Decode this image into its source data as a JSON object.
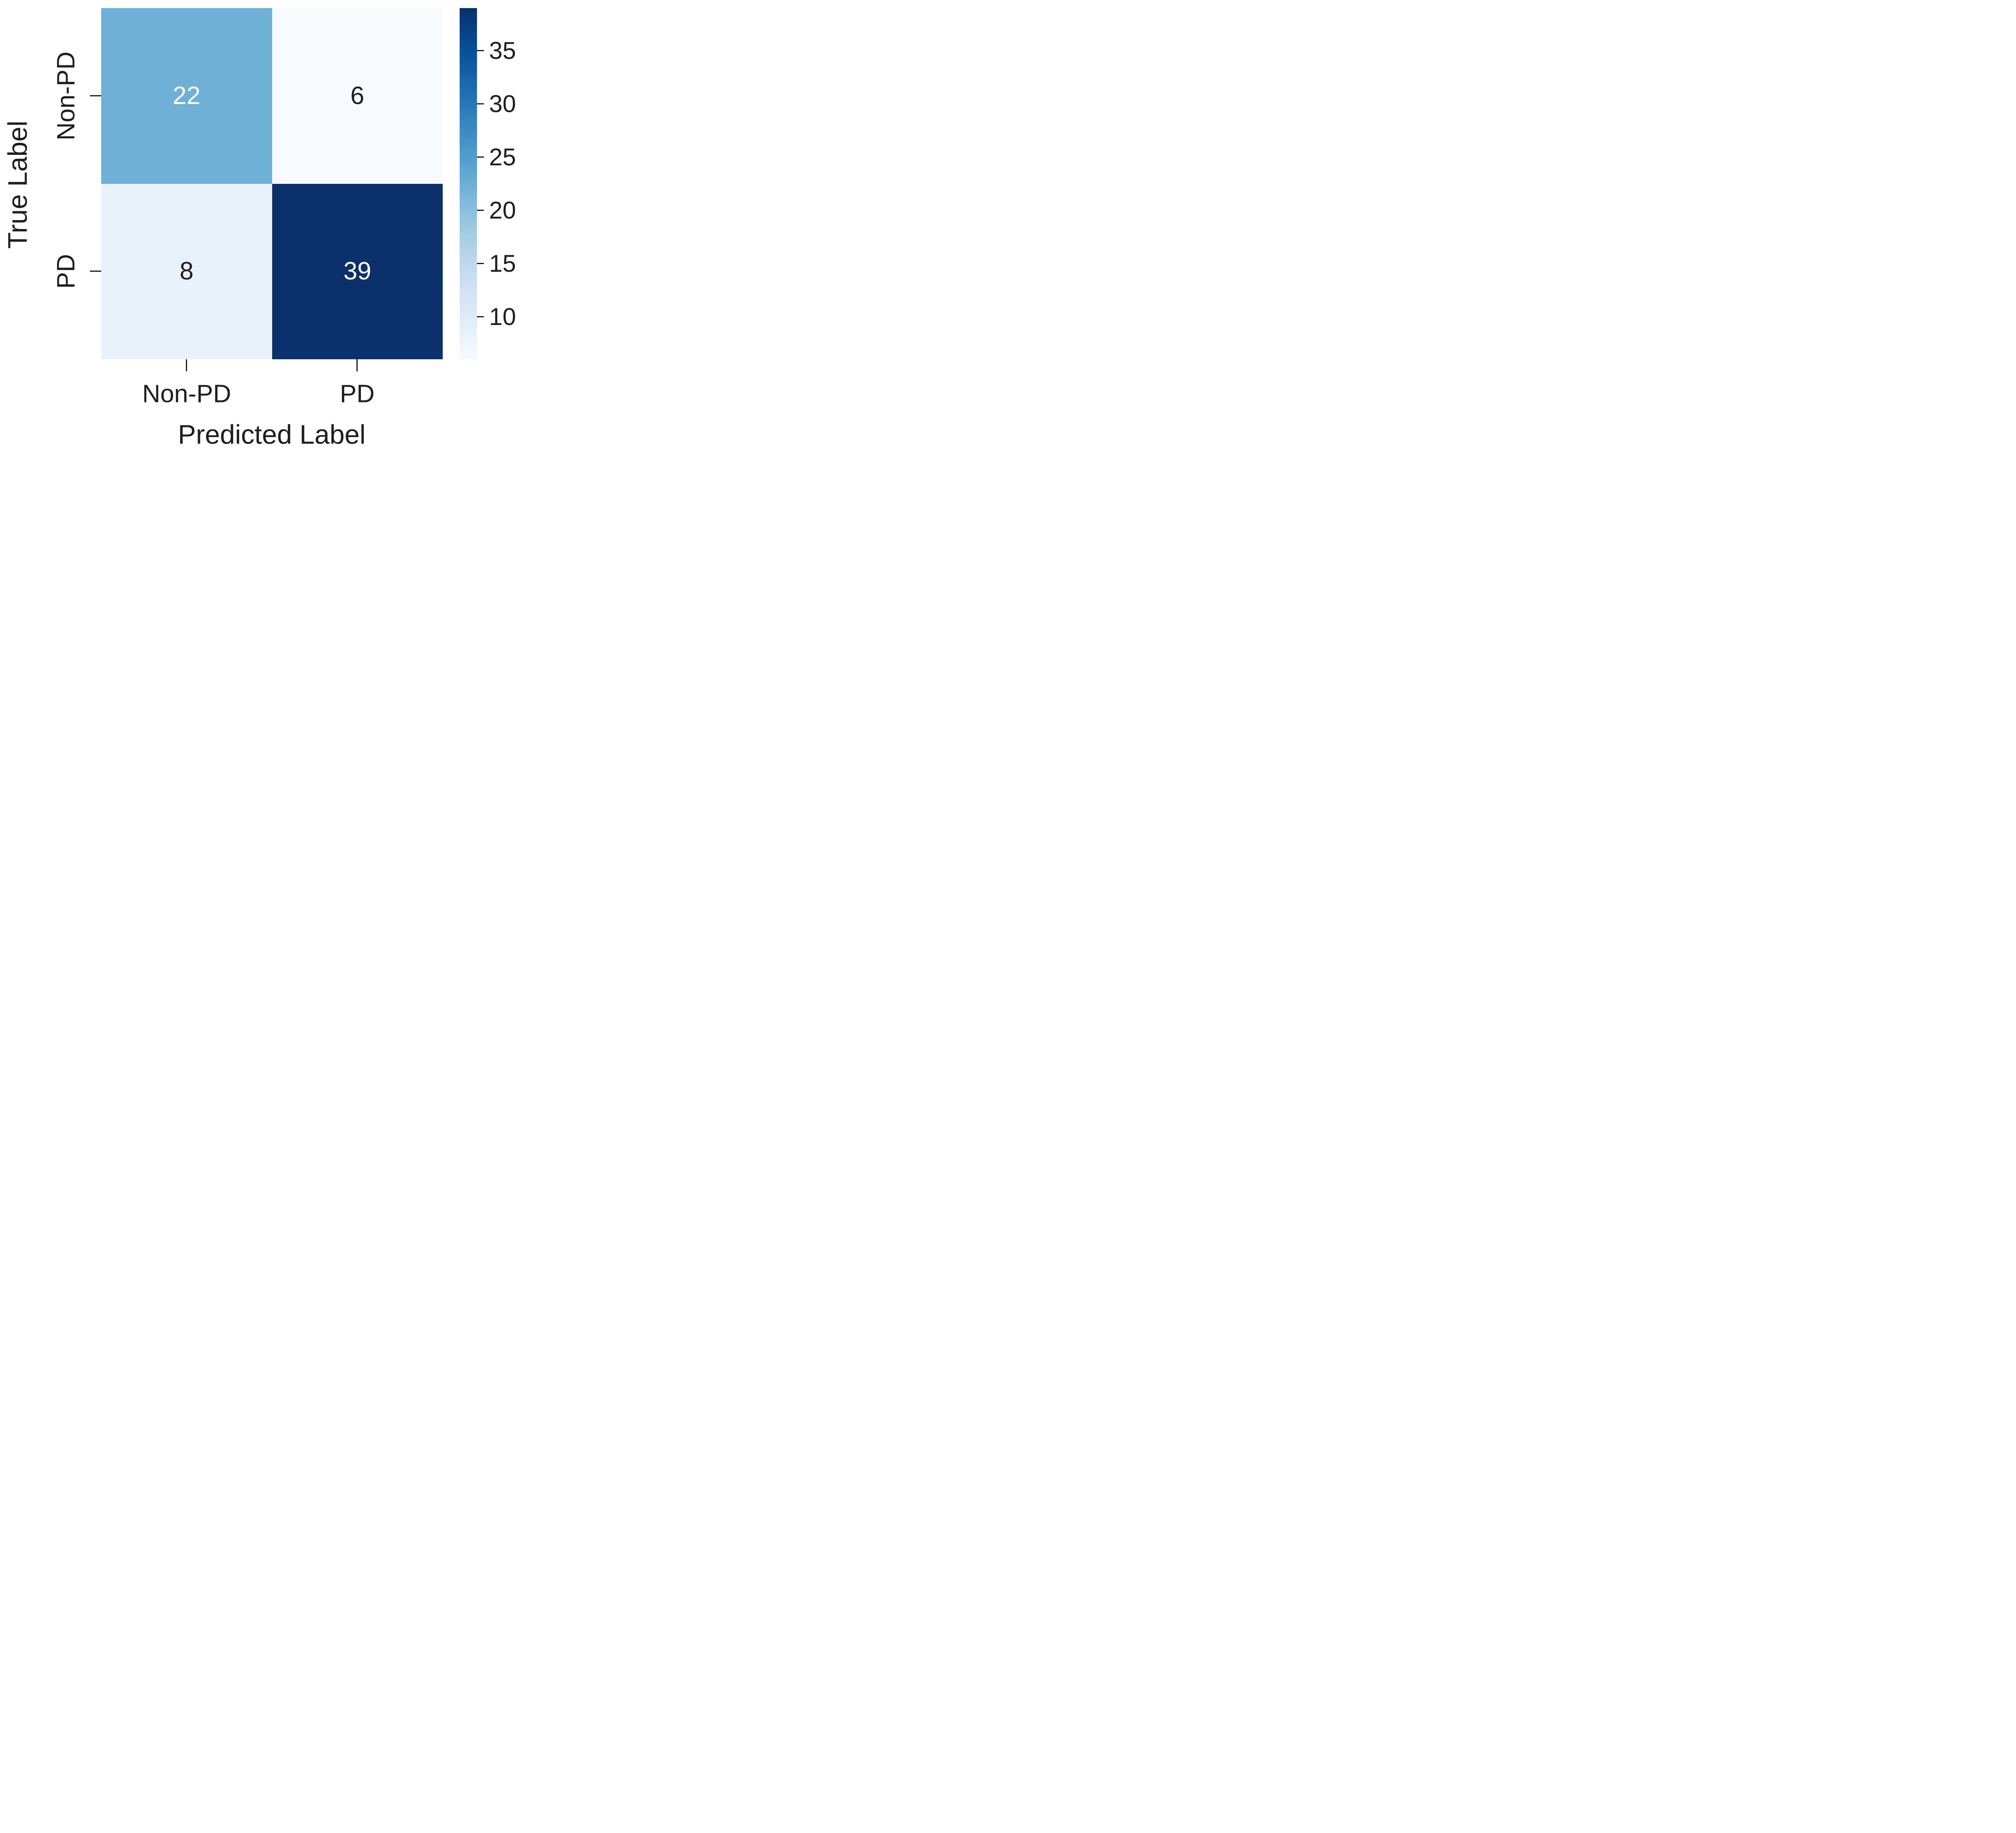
{
  "figure": {
    "x_axis_title": "Predicted Label",
    "y_axis_title": "True Label",
    "x_tick_labels": [
      "Non-PD",
      "PD"
    ],
    "y_tick_labels": [
      "Non-PD",
      "PD"
    ],
    "cells": [
      {
        "row": 0,
        "col": 0,
        "value": "22",
        "bg": "#6fb0d6",
        "fg": "#ffffff"
      },
      {
        "row": 0,
        "col": 1,
        "value": "6",
        "bg": "#f7fbff",
        "fg": "#1e1e1e"
      },
      {
        "row": 1,
        "col": 0,
        "value": "8",
        "bg": "#e9f2fb",
        "fg": "#1e1e1e"
      },
      {
        "row": 1,
        "col": 1,
        "value": "39",
        "bg": "#0a316c",
        "fg": "#ffffff"
      }
    ],
    "colorbar": {
      "tick_labels": [
        "35",
        "30",
        "25",
        "20",
        "15",
        "10"
      ],
      "gradient_top_to_bottom": [
        "#08306b",
        "#08519c",
        "#2171b5",
        "#4292c6",
        "#6baed6",
        "#9ecae1",
        "#c6dbef",
        "#deebf7",
        "#f7fbff"
      ]
    },
    "text_color": "#1e1e1e"
  },
  "chart_data": {
    "type": "heatmap",
    "subtype": "confusion-matrix",
    "x_categories": [
      "Non-PD",
      "PD"
    ],
    "y_categories": [
      "Non-PD",
      "PD"
    ],
    "matrix": [
      [
        22,
        6
      ],
      [
        8,
        39
      ]
    ],
    "xlabel": "Predicted Label",
    "ylabel": "True Label",
    "annotations": [
      [
        "22",
        "6"
      ],
      [
        "8",
        "39"
      ]
    ],
    "colormap": "Blues",
    "color_range": [
      6,
      39
    ],
    "colorbar_ticks": [
      10,
      15,
      20,
      25,
      30,
      35
    ],
    "colorbar_position": "right",
    "grid": false,
    "title": ""
  }
}
